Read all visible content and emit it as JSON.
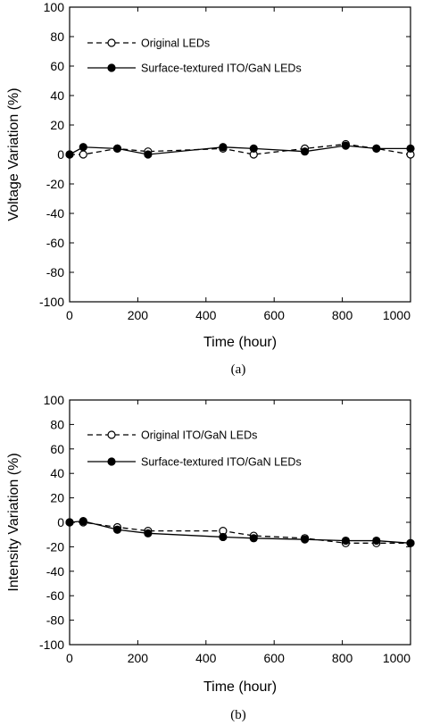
{
  "chart_data": [
    {
      "type": "line",
      "panel_label": "(a)",
      "xlabel": "Time (hour)",
      "ylabel": "Voltage Variation (%)",
      "xlim": [
        0,
        1000
      ],
      "ylim": [
        -100,
        100
      ],
      "xticks": [
        0,
        200,
        400,
        600,
        800,
        1000
      ],
      "yticks": [
        100,
        80,
        60,
        40,
        20,
        0,
        -20,
        -40,
        -60,
        -80,
        -100
      ],
      "grid": false,
      "legend_position": "top-left",
      "series": [
        {
          "name": "Original LEDs",
          "marker": "open-circle",
          "line": "dashed",
          "x": [
            0,
            40,
            140,
            230,
            450,
            540,
            690,
            810,
            900,
            1000
          ],
          "y": [
            0,
            0,
            4,
            2,
            4,
            0,
            4,
            7,
            4,
            0
          ]
        },
        {
          "name": "Surface-textured ITO/GaN LEDs",
          "marker": "filled-circle",
          "line": "solid",
          "x": [
            0,
            40,
            140,
            230,
            450,
            540,
            690,
            810,
            900,
            1000
          ],
          "y": [
            0,
            5,
            4,
            0,
            5,
            4,
            2,
            6,
            4,
            4
          ]
        }
      ]
    },
    {
      "type": "line",
      "panel_label": "(b)",
      "xlabel": "Time (hour)",
      "ylabel": "Intensity Variation (%)",
      "xlim": [
        0,
        1000
      ],
      "ylim": [
        -100,
        100
      ],
      "xticks": [
        0,
        200,
        400,
        600,
        800,
        1000
      ],
      "yticks": [
        100,
        80,
        60,
        40,
        20,
        0,
        -20,
        -40,
        -60,
        -80,
        -100
      ],
      "grid": false,
      "legend_position": "top-left",
      "series": [
        {
          "name": "Original ITO/GaN LEDs",
          "marker": "open-circle",
          "line": "dashed",
          "x": [
            0,
            40,
            140,
            230,
            450,
            540,
            690,
            810,
            900,
            1000
          ],
          "y": [
            0,
            0,
            -4,
            -7,
            -7,
            -11,
            -13,
            -17,
            -17,
            -17
          ]
        },
        {
          "name": "Surface-textured ITO/GaN LEDs",
          "marker": "filled-circle",
          "line": "solid",
          "x": [
            0,
            40,
            140,
            230,
            450,
            540,
            690,
            810,
            900,
            1000
          ],
          "y": [
            0,
            1,
            -6,
            -9,
            -12,
            -13,
            -14,
            -15,
            -15,
            -17
          ]
        }
      ]
    }
  ]
}
